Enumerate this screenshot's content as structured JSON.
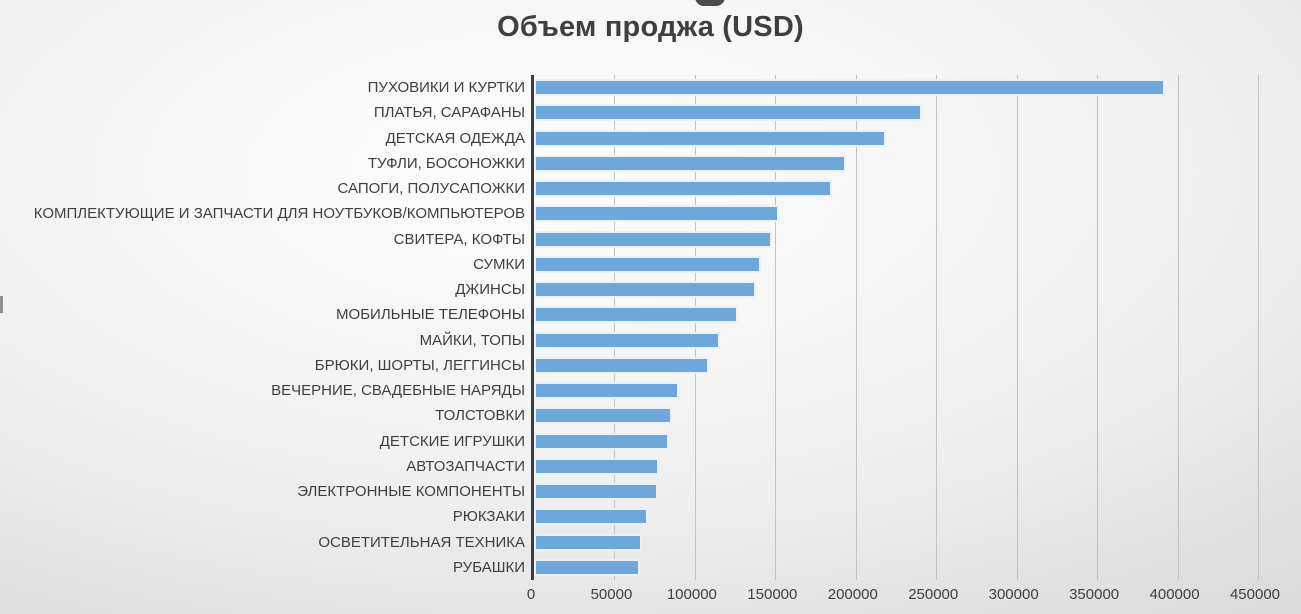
{
  "title": "Объем проджа (USD)",
  "colors": {
    "bar_fill": "#6FA7DB",
    "bar_outline": "#E9F1FA",
    "axis_line": "#3D3D3D",
    "gridline": "#C2C2C2",
    "text": "#3F3F3F",
    "background_light": "#FDFDFD",
    "background_dark": "#BFBFBF"
  },
  "chart_data": {
    "type": "bar",
    "orientation": "horizontal",
    "title": "Объем проджа (USD)",
    "xlabel": "",
    "ylabel": "",
    "xlim": [
      0,
      450000
    ],
    "x_ticks": [
      0,
      50000,
      100000,
      150000,
      200000,
      250000,
      300000,
      350000,
      400000,
      450000
    ],
    "grid": "vertical",
    "legend": "none",
    "sort": "descending",
    "categories": [
      "ПУХОВИКИ И КУРТКИ",
      "ПЛАТЬЯ, САРАФАНЫ",
      "ДЕТСКАЯ ОДЕЖДА",
      "ТУФЛИ, БОСОНОЖКИ",
      "САПОГИ, ПОЛУСАПОЖКИ",
      "КОМПЛЕКТУЮЩИЕ И ЗАПЧАСТИ ДЛЯ НОУТБУКОВ/КОМПЬЮТЕРОВ",
      "СВИТЕРА, КОФТЫ",
      "СУМКИ",
      "ДЖИНСЫ",
      "МОБИЛЬНЫЕ ТЕЛЕФОНЫ",
      "МАЙКИ, ТОПЫ",
      "БРЮКИ, ШОРТЫ, ЛЕГГИНСЫ",
      "ВЕЧЕРНИЕ, СВАДЕБНЫЕ НАРЯДЫ",
      "ТОЛСТОВКИ",
      "ДЕТСКИЕ ИГРУШКИ",
      "АВТОЗАПЧАСТИ",
      "ЭЛЕКТРОННЫЕ КОМПОНЕНТЫ",
      "РЮКЗАКИ",
      "ОСВЕТИТЕЛЬНАЯ ТЕХНИКА",
      "РУБАШКИ"
    ],
    "values": [
      392000,
      241000,
      219000,
      194000,
      185000,
      152000,
      148000,
      141000,
      138000,
      127000,
      115500,
      109000,
      90000,
      86000,
      84000,
      77500,
      77000,
      71000,
      67000,
      66000
    ]
  }
}
